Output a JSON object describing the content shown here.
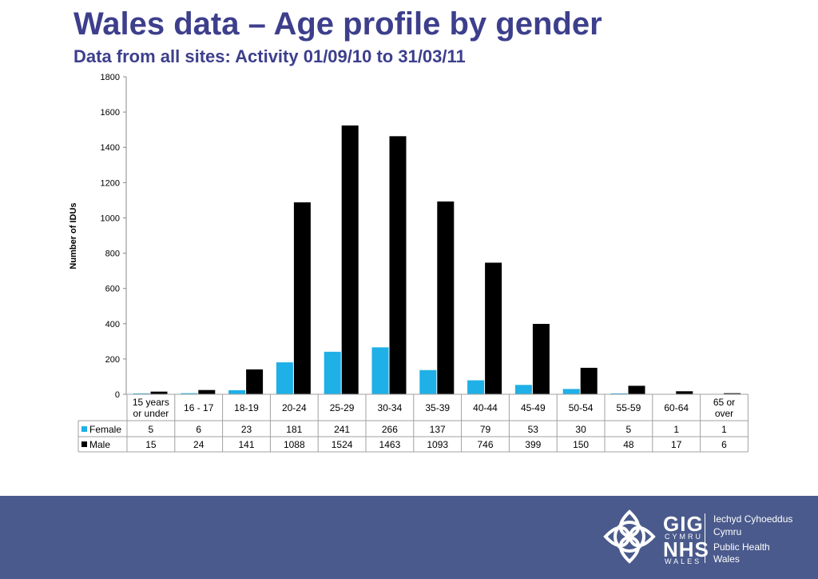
{
  "header": {
    "title": "Wales data – Age profile by gender",
    "subtitle": "Data from all sites: Activity 01/09/10 to 31/03/11"
  },
  "chart_data": {
    "type": "bar",
    "ylabel": "Number of IDUs",
    "ylim": [
      0,
      1800
    ],
    "yticks": [
      0,
      200,
      400,
      600,
      800,
      1000,
      1200,
      1400,
      1600,
      1800
    ],
    "categories": [
      "15 years or under",
      "16 - 17",
      "18-19",
      "20-24",
      "25-29",
      "30-34",
      "35-39",
      "40-44",
      "45-49",
      "50-54",
      "55-59",
      "60-64",
      "65 or over"
    ],
    "category_lines": [
      [
        "15 years",
        "or under"
      ],
      [
        "16 - 17"
      ],
      [
        "18-19"
      ],
      [
        "20-24"
      ],
      [
        "25-29"
      ],
      [
        "30-34"
      ],
      [
        "35-39"
      ],
      [
        "40-44"
      ],
      [
        "45-49"
      ],
      [
        "50-54"
      ],
      [
        "55-59"
      ],
      [
        "60-64"
      ],
      [
        "65 or",
        "over"
      ]
    ],
    "series": [
      {
        "name": "Female",
        "color": "#1eb0e6",
        "values": [
          5,
          6,
          23,
          181,
          241,
          266,
          137,
          79,
          53,
          30,
          5,
          1,
          1
        ]
      },
      {
        "name": "Male",
        "color": "#000000",
        "values": [
          15,
          24,
          141,
          1088,
          1524,
          1463,
          1093,
          746,
          399,
          150,
          48,
          17,
          6
        ]
      }
    ],
    "grid": false,
    "legend": "data table"
  },
  "footer": {
    "logo_gig": "GIG",
    "logo_cymru": "CYMRU",
    "logo_nhs": "NHS",
    "logo_wales": "WALES",
    "org_line1": "Iechyd Cyhoeddus",
    "org_line2": "Cymru",
    "org_line3": "Public Health",
    "org_line4": "Wales"
  }
}
